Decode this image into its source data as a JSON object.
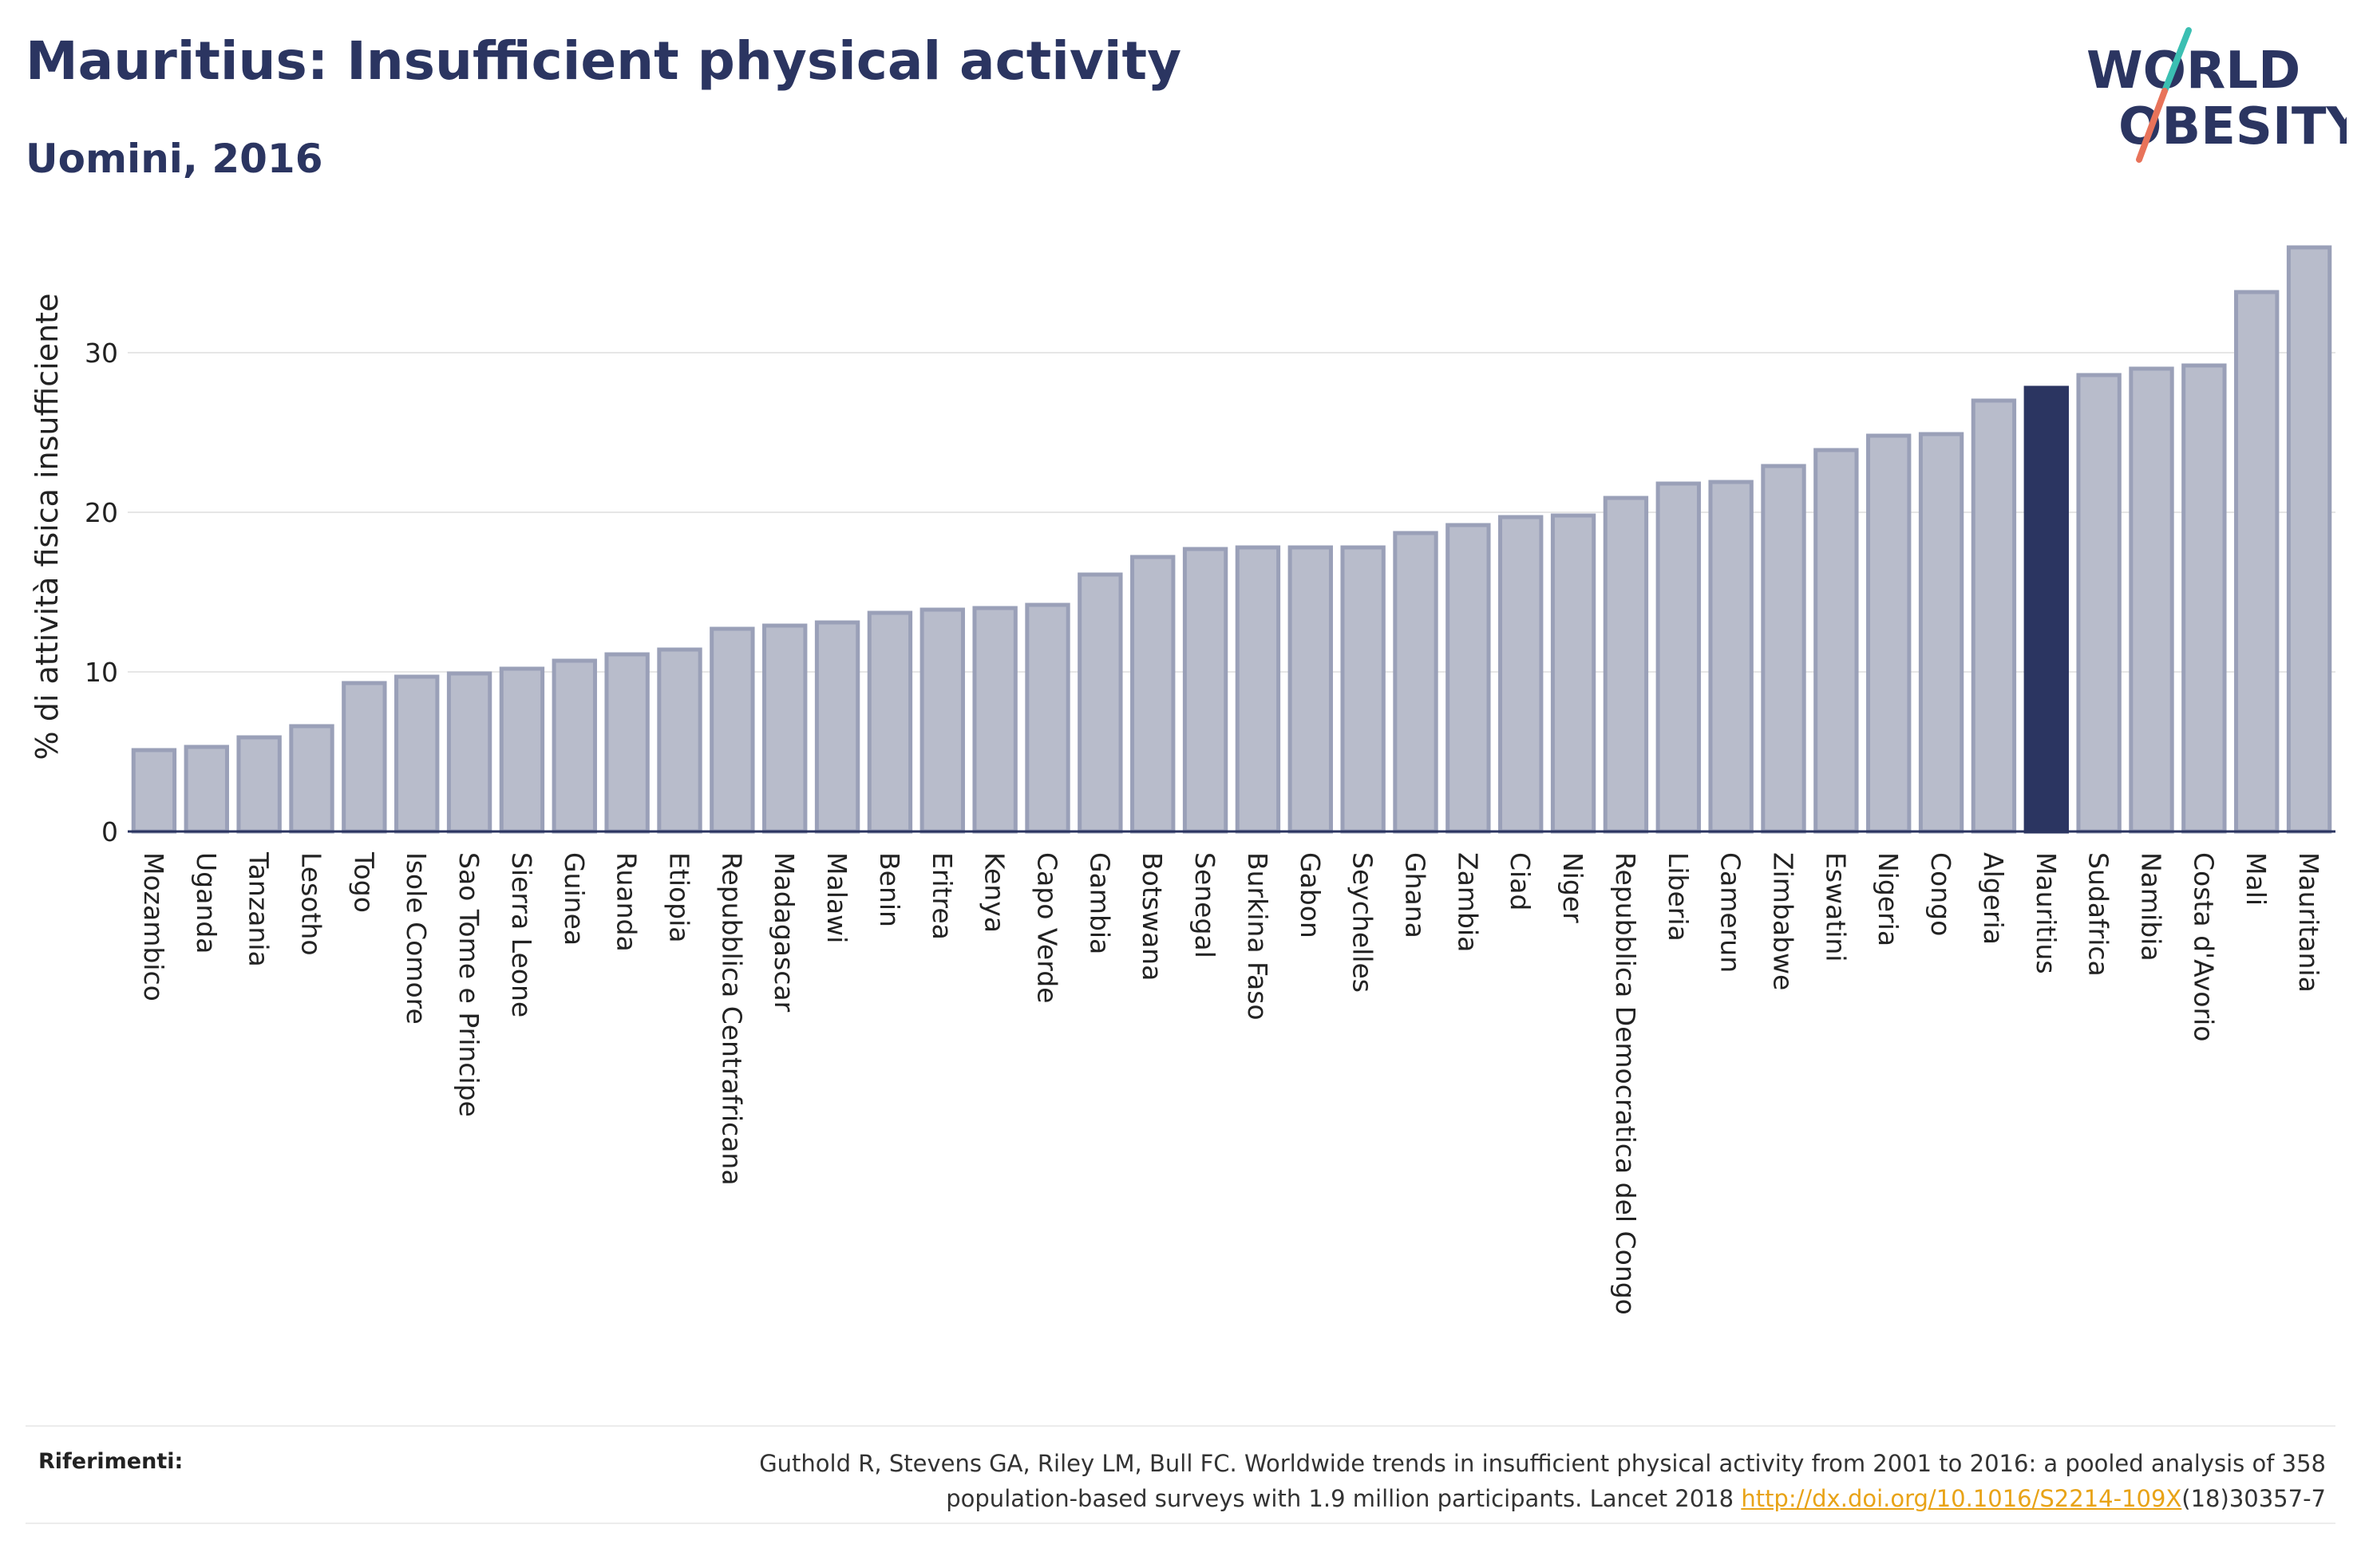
{
  "header": {
    "title": "Mauritius: Insufficient physical activity",
    "subtitle": "Uomini, 2016"
  },
  "logo": {
    "line1": "WORLD",
    "line2": "OBESITY"
  },
  "colors": {
    "bar": "#b8bccb",
    "bar_border": "#9aa0b8",
    "highlight": "#2b3561",
    "grid": "#e6e6e6",
    "axis": "#2b3561",
    "text": "#222222",
    "logo_teal": "#3bbfb2",
    "logo_coral": "#e8735a",
    "link": "#e8a317"
  },
  "chart_data": {
    "type": "bar",
    "ylabel": "% di attività fisica insufficiente",
    "ylim": [
      0,
      37
    ],
    "yticks": [
      0,
      10,
      20,
      30
    ],
    "grid": true,
    "highlight": "Mauritius",
    "categories": [
      "Mozambico",
      "Uganda",
      "Tanzania",
      "Lesotho",
      "Togo",
      "Isole Comore",
      "Sao Tome e Principe",
      "Sierra Leone",
      "Guinea",
      "Ruanda",
      "Etiopia",
      "Repubblica Centrafricana",
      "Madagascar",
      "Malawi",
      "Benin",
      "Eritrea",
      "Kenya",
      "Capo Verde",
      "Gambia",
      "Botswana",
      "Senegal",
      "Burkina Faso",
      "Gabon",
      "Seychelles",
      "Ghana",
      "Zambia",
      "Ciad",
      "Niger",
      "Repubblica Democratica del Congo",
      "Liberia",
      "Camerun",
      "Zimbabwe",
      "Eswatini",
      "Nigeria",
      "Congo",
      "Algeria",
      "Mauritius",
      "Sudafrica",
      "Namibia",
      "Costa d'Avorio",
      "Mali",
      "Mauritania"
    ],
    "values": [
      5.1,
      5.3,
      5.9,
      6.6,
      9.3,
      9.7,
      9.9,
      10.2,
      10.7,
      11.1,
      11.4,
      12.7,
      12.9,
      13.1,
      13.7,
      13.9,
      14.0,
      14.2,
      16.1,
      17.2,
      17.7,
      17.8,
      17.8,
      17.8,
      18.7,
      19.2,
      19.7,
      19.8,
      20.9,
      21.8,
      21.9,
      22.9,
      23.9,
      24.8,
      24.9,
      27.0,
      27.8,
      28.6,
      29.0,
      29.2,
      33.8,
      36.6
    ]
  },
  "references": {
    "label": "Riferimenti:",
    "text_line1": "Guthold R, Stevens GA, Riley LM, Bull FC. Worldwide trends in insufficient physical activity from 2001 to 2016: a pooled analysis of 358",
    "text_line2_before": "population-based surveys with 1.9 million participants. Lancet 2018 ",
    "link_text": "http://dx.doi.org/10.1016/S2214-109X",
    "text_line2_after": "(18)30357-7"
  }
}
